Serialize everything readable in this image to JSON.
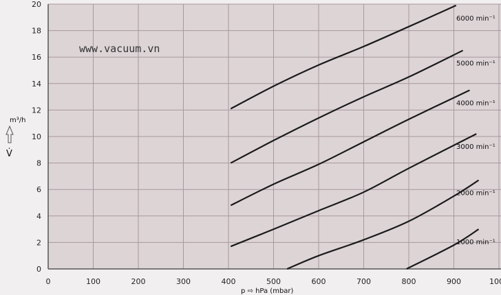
{
  "chart_data": {
    "type": "line",
    "xlabel": "p ⇨ hPa (mbar)",
    "ylabel_unit": "m³/h",
    "ylabel_symbol": "V̇",
    "xlim": [
      0,
      1000
    ],
    "ylim": [
      0,
      20
    ],
    "grid": true,
    "x_ticks": [
      "0",
      "100",
      "200",
      "300",
      "400",
      "500",
      "600",
      "700",
      "800",
      "900",
      "1000"
    ],
    "y_ticks": [
      "0",
      "2",
      "4",
      "6",
      "8",
      "10",
      "12",
      "14",
      "16",
      "18",
      "20"
    ],
    "watermark": "www.vacuum.vn",
    "colors": {
      "plot_bg": "#ddd4d6",
      "grid": "#a8979b",
      "line": "#1a1a1a"
    },
    "series": [
      {
        "name": "6000 min⁻¹",
        "x": [
          405,
          500,
          600,
          700,
          800,
          905
        ],
        "y": [
          12.1,
          13.8,
          15.4,
          16.8,
          18.3,
          19.9
        ]
      },
      {
        "name": "5000 min⁻¹",
        "x": [
          405,
          500,
          600,
          700,
          800,
          920
        ],
        "y": [
          8.0,
          9.7,
          11.4,
          13.0,
          14.5,
          16.5
        ]
      },
      {
        "name": "4000 min⁻¹",
        "x": [
          405,
          500,
          600,
          700,
          800,
          935
        ],
        "y": [
          4.8,
          6.4,
          7.9,
          9.6,
          11.3,
          13.5
        ]
      },
      {
        "name": "3000 min⁻¹",
        "x": [
          405,
          500,
          600,
          700,
          800,
          950
        ],
        "y": [
          1.7,
          3.0,
          4.4,
          5.8,
          7.6,
          10.2
        ]
      },
      {
        "name": "2000 min⁻¹",
        "x": [
          530,
          600,
          700,
          800,
          900,
          955
        ],
        "y": [
          0,
          1.0,
          2.2,
          3.6,
          5.5,
          6.7
        ]
      },
      {
        "name": "1000 min⁻¹",
        "x": [
          795,
          900,
          955
        ],
        "y": [
          0,
          1.8,
          3.0
        ]
      }
    ]
  }
}
